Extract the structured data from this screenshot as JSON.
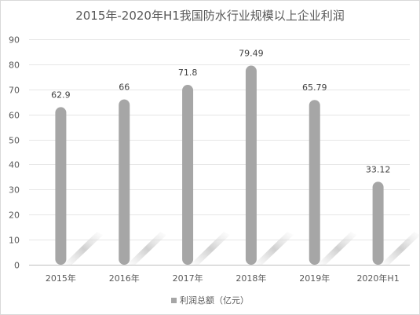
{
  "chart_data": {
    "type": "bar",
    "title": "2015年-2020年H1我国防水行业规模以上企业利润",
    "categories": [
      "2015年",
      "2016年",
      "2017年",
      "2018年",
      "2019年",
      "2020年H1"
    ],
    "series": [
      {
        "name": "利润总额（亿元）",
        "values": [
          62.9,
          66,
          71.8,
          79.49,
          65.79,
          33.12
        ]
      }
    ],
    "value_labels": [
      "62.9",
      "66",
      "71.8",
      "79.49",
      "65.79",
      "33.12"
    ],
    "ylim": [
      0,
      90
    ],
    "yticks": [
      0,
      10,
      20,
      30,
      40,
      50,
      60,
      70,
      80,
      90
    ],
    "grid": true,
    "legend_position": "bottom",
    "bar_color": "#a6a6a6"
  }
}
